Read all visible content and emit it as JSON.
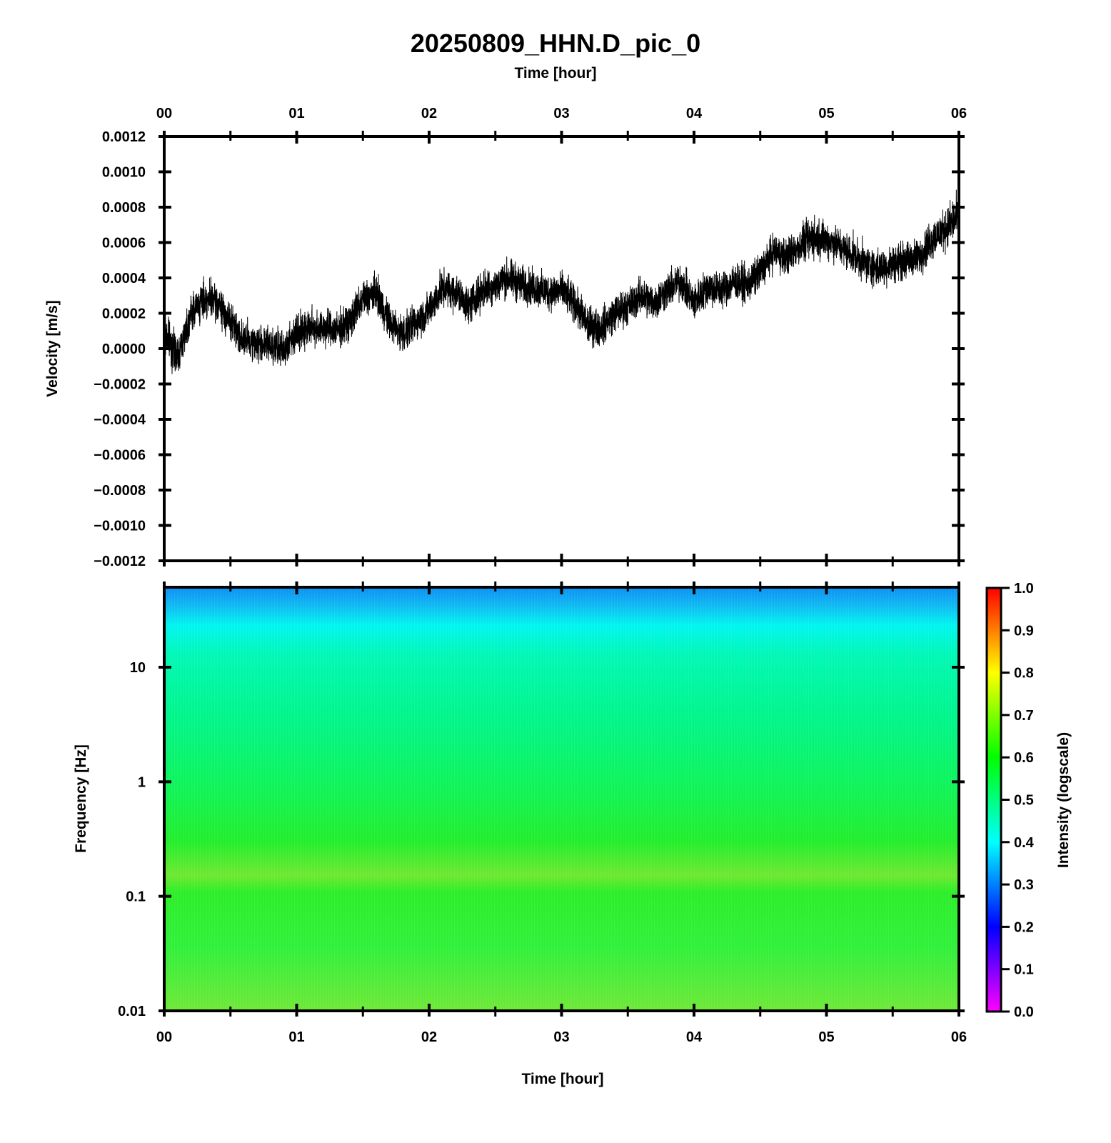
{
  "chart_data": [
    {
      "type": "line",
      "title": "20250809_HHN.D_pic_0",
      "xlabel": "Time [hour]",
      "ylabel": "Velocity [m/s]",
      "xlim": [
        0,
        6
      ],
      "ylim": [
        -0.0012,
        0.0012
      ],
      "x_ticks": [
        "00",
        "01",
        "02",
        "03",
        "04",
        "05",
        "06"
      ],
      "y_ticks": [
        "0.0012",
        "0.0010",
        "0.0008",
        "0.0006",
        "0.0004",
        "0.0002",
        "0.0000",
        "−0.0002",
        "−0.0004",
        "−0.0006",
        "−0.0008",
        "−0.0010",
        "−0.0012"
      ],
      "grid": false,
      "series_color": "#000000",
      "envelope": {
        "x": [
          0.0,
          0.1,
          0.2,
          0.3,
          0.4,
          0.5,
          0.6,
          0.7,
          0.8,
          0.9,
          1.0,
          1.1,
          1.2,
          1.3,
          1.4,
          1.5,
          1.6,
          1.7,
          1.8,
          1.9,
          2.0,
          2.1,
          2.2,
          2.3,
          2.4,
          2.5,
          2.6,
          2.7,
          2.8,
          2.9,
          3.0,
          3.1,
          3.2,
          3.3,
          3.4,
          3.5,
          3.6,
          3.7,
          3.8,
          3.9,
          4.0,
          4.1,
          4.2,
          4.3,
          4.4,
          4.5,
          4.6,
          4.7,
          4.8,
          4.9,
          5.0,
          5.1,
          5.2,
          5.3,
          5.4,
          5.5,
          5.6,
          5.7,
          5.8,
          5.9,
          6.0
        ],
        "center": [
          0.0001,
          -5e-05,
          0.0002,
          0.00028,
          0.00026,
          0.00015,
          5e-05,
          3e-05,
          2e-05,
          -1e-05,
          0.0001,
          0.00012,
          0.00012,
          0.0001,
          0.00015,
          0.00028,
          0.00032,
          0.00015,
          8e-05,
          0.00015,
          0.00022,
          0.00034,
          0.00032,
          0.00024,
          0.00033,
          0.00036,
          0.0004,
          0.00036,
          0.00034,
          0.00032,
          0.00033,
          0.00025,
          0.00013,
          0.00012,
          0.0002,
          0.00024,
          0.0003,
          0.00026,
          0.00033,
          0.00038,
          0.00026,
          0.00035,
          0.00033,
          0.00038,
          0.00036,
          0.00043,
          0.00055,
          0.00052,
          0.00058,
          0.00063,
          0.00062,
          0.00058,
          0.00053,
          0.00048,
          0.00045,
          0.00048,
          0.0005,
          0.00052,
          0.00062,
          0.00068,
          0.00075
        ],
        "half_range": [
          0.00015,
          0.00012,
          0.00012,
          0.00012,
          0.00012,
          0.00012,
          0.00012,
          0.00012,
          0.00013,
          0.00012,
          0.00012,
          0.00012,
          0.00012,
          0.00012,
          0.00012,
          0.00012,
          0.00012,
          0.00012,
          0.00012,
          0.00012,
          0.00012,
          0.00012,
          0.00012,
          0.00012,
          0.00012,
          0.00012,
          0.00013,
          0.00012,
          0.00012,
          0.00012,
          0.00012,
          0.00012,
          0.00013,
          0.00012,
          0.00012,
          0.00012,
          0.00012,
          0.00012,
          0.00012,
          0.00012,
          0.00012,
          0.00012,
          0.00012,
          0.00012,
          0.00012,
          0.00012,
          0.00012,
          0.00012,
          0.00012,
          0.00014,
          0.00012,
          0.00012,
          0.00012,
          0.00012,
          0.00012,
          0.00012,
          0.00012,
          0.00012,
          0.00013,
          0.00013,
          0.00015
        ]
      }
    },
    {
      "type": "heatmap",
      "xlabel": "Time [hour]",
      "ylabel": "Frequency [Hz]",
      "xlim": [
        0,
        6
      ],
      "ylim": [
        0.01,
        50
      ],
      "y_scale": "log",
      "x_ticks": [
        "00",
        "01",
        "02",
        "03",
        "04",
        "05",
        "06"
      ],
      "y_ticks": [
        "10",
        "1",
        "0.1",
        "0.01"
      ],
      "colorbar": {
        "label": "Intensity (logscale)",
        "range": [
          0.0,
          1.0
        ],
        "ticks": [
          "1.0",
          "0.9",
          "0.8",
          "0.7",
          "0.6",
          "0.5",
          "0.4",
          "0.3",
          "0.2",
          "0.1",
          "0.0"
        ],
        "colors": [
          "#ff00ff",
          "#0000ff",
          "#00ffff",
          "#00ff00",
          "#ffff00",
          "#ff0000"
        ]
      },
      "intensity_profile": {
        "frequency_hz": [
          50,
          35,
          20,
          10,
          3,
          1,
          0.4,
          0.2,
          0.1,
          0.03,
          0.01
        ],
        "intensity": [
          0.35,
          0.4,
          0.45,
          0.5,
          0.53,
          0.56,
          0.58,
          0.62,
          0.6,
          0.6,
          0.63
        ]
      }
    }
  ]
}
